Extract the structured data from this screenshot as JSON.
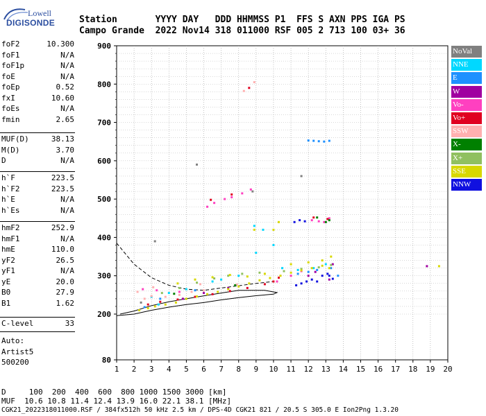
{
  "logo": {
    "line1": "Lowell",
    "line2": "DIGISONDE"
  },
  "header": {
    "line1": "Station       YYYY DAY   DDD HHMMSS P1  FFS S AXN PPS IGA PS",
    "line2": "Campo Grande  2022 Nov14 318 011000 RSF 005 2 713 100 03+ 36"
  },
  "params_group1": [
    {
      "key": "foF2",
      "value": "10.300"
    },
    {
      "key": "foF1",
      "value": "N/A"
    },
    {
      "key": "foF1p",
      "value": "N/A"
    },
    {
      "key": "foE",
      "value": "N/A"
    },
    {
      "key": "foEp",
      "value": "0.52"
    },
    {
      "key": "fxI",
      "value": "10.60"
    },
    {
      "key": "foEs",
      "value": "N/A"
    },
    {
      "key": "fmin",
      "value": "2.65"
    }
  ],
  "params_group2": [
    {
      "key": "MUF(D)",
      "value": "38.13"
    },
    {
      "key": "M(D)",
      "value": "3.70"
    },
    {
      "key": "D",
      "value": "N/A"
    }
  ],
  "params_group3": [
    {
      "key": "h`F",
      "value": "223.5"
    },
    {
      "key": "h`F2",
      "value": "223.5"
    },
    {
      "key": "h`E",
      "value": "N/A"
    },
    {
      "key": "h`Es",
      "value": "N/A"
    }
  ],
  "params_group4": [
    {
      "key": "hmF2",
      "value": "252.9"
    },
    {
      "key": "hmF1",
      "value": "N/A"
    },
    {
      "key": "hmE",
      "value": "110.0"
    },
    {
      "key": "yF2",
      "value": "26.5"
    },
    {
      "key": "yF1",
      "value": "N/A"
    },
    {
      "key": "yE",
      "value": "20.0"
    },
    {
      "key": "B0",
      "value": "27.9"
    },
    {
      "key": "B1",
      "value": "1.62"
    }
  ],
  "params_group5": [
    {
      "key": "C-level",
      "value": "33"
    }
  ],
  "autoscaling": {
    "line1": "Auto:",
    "line2": "Artist5",
    "line3": "500200"
  },
  "legend": [
    {
      "label": "NoVal",
      "color": "#808080"
    },
    {
      "label": "NNE",
      "color": "#00d8ff"
    },
    {
      "label": "E",
      "color": "#1e90ff"
    },
    {
      "label": "W",
      "color": "#a000a0"
    },
    {
      "label": "Vo-",
      "color": "#ff40c0"
    },
    {
      "label": "Vo+",
      "color": "#e00020"
    },
    {
      "label": "SSW",
      "color": "#ffb0b0"
    },
    {
      "label": "X-",
      "color": "#008000"
    },
    {
      "label": "X+",
      "color": "#90c060"
    },
    {
      "label": "SSE",
      "color": "#d8d800"
    },
    {
      "label": "NNW",
      "color": "#1010e0"
    }
  ],
  "bottom": {
    "line_d": "D     100  200  400  600  800 1000 1500 3000 [km]",
    "line_muf": "MUF  10.6 10.8 11.4 12.4 13.9 16.0 22.1 38.1 [MHz]"
  },
  "footer": "CGK21_2022318011000.RSF / 384fx512h 50 kHz 2.5 km / DPS-4D CGK21 821 / 20.5 S 305.0 E Ion2Png 1.3.20",
  "chart_data": {
    "type": "scatter",
    "xlim": [
      1,
      20
    ],
    "ylim": [
      80,
      900
    ],
    "xticks": [
      1,
      2,
      3,
      4,
      5,
      6,
      7,
      8,
      9,
      10,
      11,
      12,
      13,
      14,
      15,
      16,
      17,
      18,
      19,
      20
    ],
    "yticks": [
      80,
      200,
      300,
      400,
      500,
      600,
      700,
      800,
      900
    ],
    "grid": true,
    "series": [
      {
        "name": "NoVal",
        "color": "#808080",
        "points": [
          [
            3.2,
            390
          ],
          [
            5.6,
            590
          ],
          [
            8.8,
            520
          ],
          [
            11.6,
            560
          ],
          [
            2.4,
            230
          ]
        ]
      },
      {
        "name": "NNE",
        "color": "#00d8ff",
        "points": [
          [
            3.0,
            245
          ],
          [
            4.0,
            255
          ],
          [
            5.0,
            265
          ],
          [
            6.5,
            285
          ],
          [
            7.0,
            290
          ],
          [
            8.0,
            300
          ],
          [
            8.9,
            430
          ],
          [
            9.4,
            420
          ],
          [
            10.5,
            320
          ],
          [
            11.4,
            315
          ],
          [
            12.3,
            320
          ],
          [
            13.0,
            330
          ],
          [
            9.0,
            360
          ],
          [
            10.0,
            380
          ],
          [
            3.4,
            225
          ]
        ]
      },
      {
        "name": "E",
        "color": "#1e90ff",
        "points": [
          [
            12.0,
            653
          ],
          [
            12.3,
            652
          ],
          [
            12.6,
            651
          ],
          [
            12.9,
            650
          ],
          [
            13.2,
            652
          ],
          [
            11.4,
            305
          ],
          [
            12.0,
            310
          ],
          [
            12.5,
            315
          ],
          [
            13.3,
            320
          ],
          [
            13.7,
            300
          ],
          [
            3.5,
            240
          ],
          [
            5.5,
            262
          ],
          [
            2.6,
            218
          ]
        ]
      },
      {
        "name": "W",
        "color": "#a000a0",
        "points": [
          [
            4.8,
            240
          ],
          [
            6.0,
            255
          ],
          [
            7.4,
            268
          ],
          [
            12.0,
            300
          ],
          [
            12.4,
            310
          ],
          [
            13.2,
            290
          ],
          [
            13.4,
            330
          ],
          [
            18.8,
            325
          ]
        ]
      },
      {
        "name": "Vo-",
        "color": "#ff40c0",
        "points": [
          [
            2.5,
            265
          ],
          [
            3.3,
            262
          ],
          [
            4.6,
            258
          ],
          [
            6.2,
            480
          ],
          [
            6.6,
            490
          ],
          [
            7.2,
            500
          ],
          [
            7.6,
            505
          ],
          [
            8.2,
            515
          ],
          [
            8.7,
            525
          ],
          [
            12.2,
            445
          ],
          [
            12.6,
            442
          ],
          [
            12.9,
            440
          ],
          [
            13.2,
            450
          ],
          [
            10.2,
            285
          ],
          [
            11.0,
            300
          ],
          [
            11.6,
            312
          ]
        ]
      },
      {
        "name": "Vo+",
        "color": "#e00020",
        "points": [
          [
            2.8,
            225
          ],
          [
            3.5,
            232
          ],
          [
            4.5,
            238
          ],
          [
            5.5,
            245
          ],
          [
            6.5,
            252
          ],
          [
            7.5,
            260
          ],
          [
            8.5,
            268
          ],
          [
            9.5,
            278
          ],
          [
            10.0,
            285
          ],
          [
            10.3,
            295
          ],
          [
            6.4,
            498
          ],
          [
            7.6,
            512
          ],
          [
            8.6,
            790
          ],
          [
            12.3,
            452
          ],
          [
            13.1,
            448
          ]
        ]
      },
      {
        "name": "SSW",
        "color": "#ffb0b0",
        "points": [
          [
            2.6,
            240
          ],
          [
            3.0,
            247
          ],
          [
            3.8,
            245
          ],
          [
            4.6,
            250
          ],
          [
            5.3,
            258
          ],
          [
            6.0,
            262
          ],
          [
            2.2,
            258
          ],
          [
            3.1,
            270
          ],
          [
            7.9,
            277
          ],
          [
            8.3,
            782
          ],
          [
            8.9,
            805
          ],
          [
            5.8,
            278
          ]
        ]
      },
      {
        "name": "X-",
        "color": "#008000",
        "points": [
          [
            12.5,
            452
          ],
          [
            13.0,
            440
          ],
          [
            13.2,
            445
          ],
          [
            4.3,
            253
          ],
          [
            7.8,
            275
          ]
        ]
      },
      {
        "name": "X+",
        "color": "#90c060",
        "points": [
          [
            3.6,
            255
          ],
          [
            4.6,
            268
          ],
          [
            5.6,
            282
          ],
          [
            6.6,
            293
          ],
          [
            7.4,
            300
          ],
          [
            8.2,
            305
          ],
          [
            9.2,
            308
          ],
          [
            10.6,
            312
          ],
          [
            11.6,
            318
          ],
          [
            12.6,
            322
          ],
          [
            13.3,
            328
          ]
        ]
      },
      {
        "name": "SSE",
        "color": "#d8d800",
        "points": [
          [
            2.3,
            210
          ],
          [
            2.8,
            215
          ],
          [
            3.2,
            220
          ],
          [
            3.8,
            225
          ],
          [
            4.4,
            230
          ],
          [
            5.0,
            240
          ],
          [
            5.6,
            246
          ],
          [
            6.2,
            252
          ],
          [
            6.8,
            258
          ],
          [
            7.4,
            265
          ],
          [
            8.0,
            272
          ],
          [
            8.6,
            280
          ],
          [
            9.2,
            288
          ],
          [
            9.8,
            294
          ],
          [
            10.4,
            300
          ],
          [
            11.0,
            308
          ],
          [
            11.6,
            314
          ],
          [
            12.2,
            320
          ],
          [
            12.8,
            326
          ],
          [
            13.2,
            320
          ],
          [
            4.5,
            280
          ],
          [
            5.5,
            290
          ],
          [
            6.5,
            296
          ],
          [
            7.5,
            302
          ],
          [
            8.5,
            298
          ],
          [
            9.5,
            305
          ],
          [
            10.0,
            420
          ],
          [
            10.3,
            440
          ],
          [
            11.0,
            330
          ],
          [
            12.0,
            335
          ],
          [
            12.8,
            340
          ],
          [
            13.3,
            350
          ],
          [
            19.5,
            325
          ],
          [
            8.9,
            420
          ]
        ]
      },
      {
        "name": "NNW",
        "color": "#1010e0",
        "points": [
          [
            11.3,
            275
          ],
          [
            11.6,
            280
          ],
          [
            11.9,
            285
          ],
          [
            12.2,
            290
          ],
          [
            12.5,
            285
          ],
          [
            12.8,
            300
          ],
          [
            13.1,
            305
          ],
          [
            11.2,
            440
          ],
          [
            11.5,
            445
          ],
          [
            11.8,
            442
          ],
          [
            13.2,
            300
          ],
          [
            13.4,
            292
          ]
        ]
      }
    ],
    "curves": [
      {
        "name": "profile-dashed",
        "style": "dashed",
        "points": [
          [
            1.0,
            385
          ],
          [
            2.0,
            330
          ],
          [
            3.0,
            295
          ],
          [
            4.0,
            275
          ],
          [
            5.0,
            265
          ],
          [
            6.0,
            262
          ],
          [
            7.0,
            268
          ],
          [
            8.0,
            274
          ],
          [
            9.0,
            280
          ],
          [
            10.0,
            285
          ]
        ]
      },
      {
        "name": "virtual-height-solid",
        "style": "solid",
        "points": [
          [
            1.0,
            196
          ],
          [
            2.0,
            200
          ],
          [
            3.0,
            210
          ],
          [
            4.0,
            218
          ],
          [
            5.0,
            225
          ],
          [
            6.0,
            230
          ],
          [
            7.0,
            237
          ],
          [
            8.0,
            243
          ],
          [
            9.0,
            248
          ],
          [
            10.0,
            252
          ],
          [
            10.2,
            256
          ],
          [
            9.5,
            262
          ],
          [
            8.0,
            262
          ],
          [
            7.0,
            255
          ],
          [
            5.5,
            244
          ],
          [
            4.0,
            232
          ],
          [
            3.0,
            222
          ],
          [
            2.0,
            208
          ],
          [
            1.2,
            200
          ]
        ]
      }
    ]
  }
}
